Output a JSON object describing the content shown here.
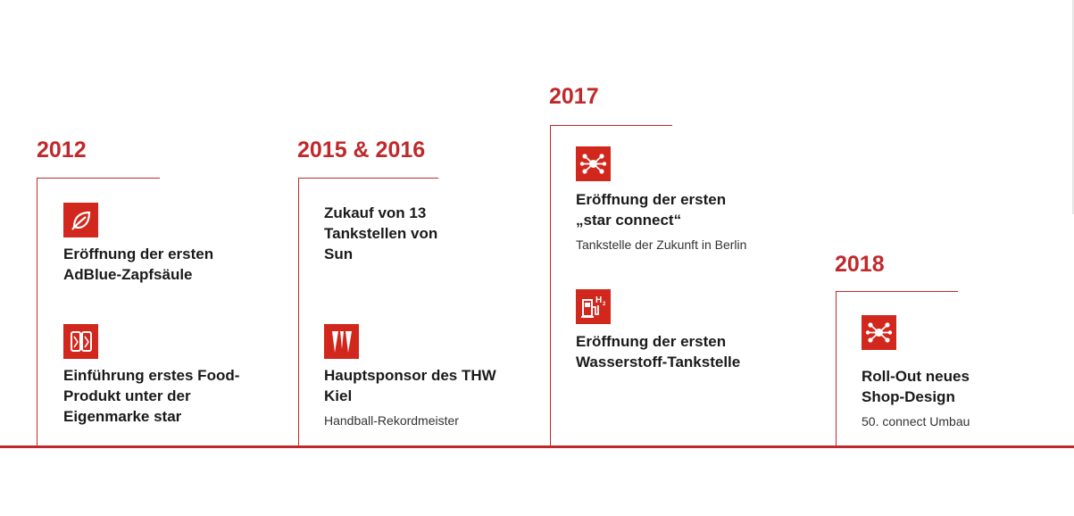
{
  "timeline": {
    "periods": [
      {
        "year": "2012",
        "items": [
          {
            "icon": "leaf-icon",
            "title": "Eröffnung der ersten AdBlue-Zapfsäule"
          },
          {
            "icon": "food-icon",
            "title": "Einführung erstes Food-Produkt unter der Eigenmarke star"
          }
        ]
      },
      {
        "year": "2015 & 2016",
        "items": [
          {
            "title": "Zukauf von 13 Tankstellen von Sun"
          },
          {
            "icon": "thw-kiel-logo-icon",
            "title": "Hauptsponsor des THW Kiel",
            "subtitle": "Handball-Rekordmeister"
          }
        ]
      },
      {
        "year": "2017",
        "items": [
          {
            "icon": "network-icon",
            "title": "Eröffnung der ersten „star connect“",
            "subtitle": "Tankstelle der Zukunft in Berlin"
          },
          {
            "icon": "hydrogen-pump-icon",
            "title": "Eröffnung der ersten Wasserstoff-Tankstelle"
          }
        ]
      },
      {
        "year": "2018",
        "items": [
          {
            "icon": "network-icon",
            "title": "Roll-Out neues Shop-Design",
            "subtitle": "50. connect Umbau"
          }
        ]
      }
    ],
    "accent_color": "#c0292b"
  }
}
